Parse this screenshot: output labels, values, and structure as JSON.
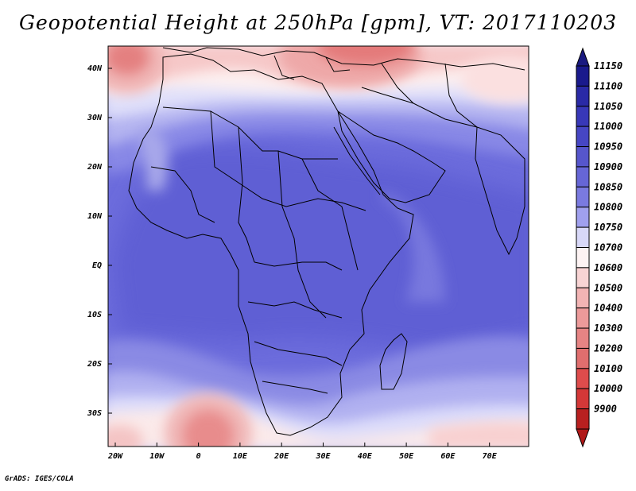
{
  "title": "Geopotential Height at 250hPa [gpm], VT: 2017110203",
  "credit": "GrADS: IGES/COLA",
  "lat_labels": [
    "40N",
    "30N",
    "20N",
    "10N",
    "EQ",
    "10S",
    "20S",
    "30S"
  ],
  "lon_labels": [
    "20W",
    "10W",
    "0",
    "10E",
    "20E",
    "30E",
    "40E",
    "50E",
    "60E",
    "70E"
  ],
  "colorbar": {
    "levels": [
      {
        "label": "11150",
        "color": "#1a1a8c"
      },
      {
        "label": "11100",
        "color": "#2a2aa6"
      },
      {
        "label": "11050",
        "color": "#3838b8"
      },
      {
        "label": "11000",
        "color": "#4646c4"
      },
      {
        "label": "10950",
        "color": "#5656cc"
      },
      {
        "label": "10900",
        "color": "#6666d6"
      },
      {
        "label": "10850",
        "color": "#7a7ae0"
      },
      {
        "label": "10800",
        "color": "#a0a0ee"
      },
      {
        "label": "10750",
        "color": "#d8d8f8"
      },
      {
        "label": "10700",
        "color": "#fdf3f3"
      },
      {
        "label": "10600",
        "color": "#f8d4d4"
      },
      {
        "label": "10500",
        "color": "#f2b4b4"
      },
      {
        "label": "10400",
        "color": "#ec9a9a"
      },
      {
        "label": "10300",
        "color": "#e68484"
      },
      {
        "label": "10200",
        "color": "#e06e6e"
      },
      {
        "label": "10100",
        "color": "#de4c4c"
      },
      {
        "label": "10000",
        "color": "#d43838"
      },
      {
        "label": "9900",
        "color": "#b82020"
      }
    ],
    "top_arrow_color": "#1a1a80",
    "bottom_arrow_color": "#b01818"
  }
}
